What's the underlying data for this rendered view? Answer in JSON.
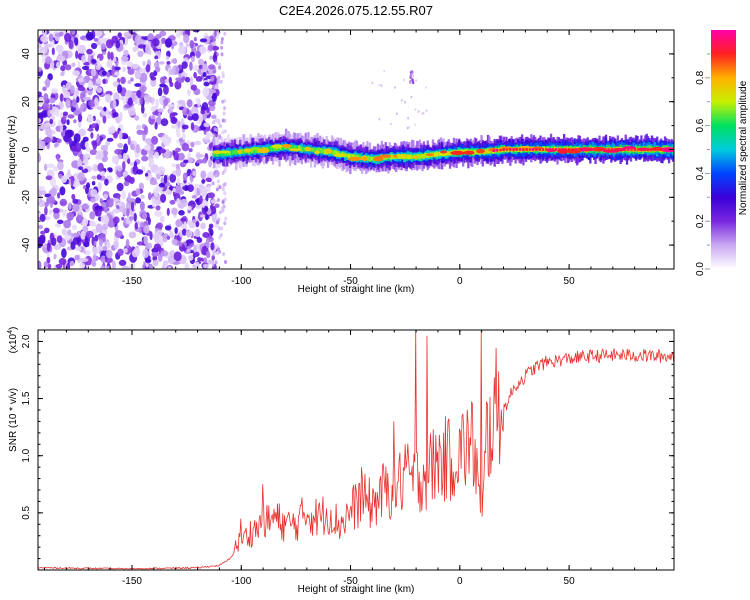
{
  "figure": {
    "title": "C2E4.2026.075.12.55.R07"
  },
  "chart_data": [
    {
      "type": "heatmap",
      "title": "C2E4.2026.075.12.55.R07",
      "xlabel": "Height of straight line (km)",
      "ylabel": "Frequency (Hz)",
      "xlim": [
        -193,
        98
      ],
      "ylim": [
        -50,
        50
      ],
      "x_ticks": [
        -150,
        -100,
        -50,
        0,
        50
      ],
      "x_tick_labels": [
        "-150",
        "-100",
        "-50",
        "0",
        "50"
      ],
      "y_ticks": [
        -40,
        -20,
        0,
        20,
        40
      ],
      "y_tick_labels": [
        "-40",
        "-20",
        "0",
        "20",
        "40"
      ],
      "colorbar": {
        "label": "Normalized spectral amplitude",
        "range": [
          0.0,
          1.0
        ],
        "ticks": [
          0.0,
          0.2,
          0.4,
          0.6,
          0.8
        ],
        "tick_labels": [
          "0.0",
          "0.2",
          "0.4",
          "0.6",
          "0.8"
        ],
        "colormap": [
          "#ffffff",
          "#c9a8f2",
          "#7a28e0",
          "#3a00d8",
          "#0044ff",
          "#00ccdd",
          "#00e060",
          "#c8f000",
          "#ffb000",
          "#ff2020",
          "#ff00aa"
        ]
      },
      "noise_region": {
        "x_range": [
          -193,
          -113
        ],
        "freq_range": [
          -50,
          50
        ]
      },
      "signal_band": {
        "x_range": [
          -113,
          98
        ],
        "center_freq_points": [
          [
            -113,
            -2
          ],
          [
            -100,
            -1
          ],
          [
            -90,
            0
          ],
          [
            -80,
            1
          ],
          [
            -70,
            0
          ],
          [
            -60,
            -1
          ],
          [
            -50,
            -3
          ],
          [
            -40,
            -4
          ],
          [
            -30,
            -3
          ],
          [
            -20,
            -3
          ],
          [
            -10,
            -2
          ],
          [
            0,
            -1
          ],
          [
            10,
            -1
          ],
          [
            20,
            0
          ],
          [
            40,
            0
          ],
          [
            60,
            0
          ],
          [
            80,
            0
          ],
          [
            98,
            0
          ]
        ],
        "band_halfwidth_hz": 6
      },
      "spurious_feature": {
        "x": -22,
        "freq": 30
      }
    },
    {
      "type": "line",
      "xlabel": "Height of straight line (km)",
      "ylabel": "SNR (10 * v/v)",
      "y_scale_label": "(x10",
      "y_scale_exponent": "4",
      "y_scale_close": ")",
      "xlim": [
        -193,
        98
      ],
      "ylim": [
        0,
        2.1
      ],
      "x_ticks": [
        -150,
        -100,
        -50,
        0,
        50
      ],
      "x_tick_labels": [
        "-150",
        "-100",
        "-50",
        "0",
        "50"
      ],
      "y_ticks": [
        0.5,
        1.0,
        1.5,
        2.0
      ],
      "y_tick_labels": [
        "0.5",
        "1.0",
        "1.5",
        "2.0"
      ],
      "series": [
        {
          "name": "SNR",
          "color": "#e8322e",
          "x": [
            -193,
            -150,
            -120,
            -110,
            -105,
            -102,
            -100,
            -95,
            -90,
            -85,
            -80,
            -75,
            -70,
            -65,
            -60,
            -55,
            -50,
            -45,
            -40,
            -35,
            -30,
            -25,
            -20,
            -15,
            -10,
            -5,
            0,
            5,
            8,
            10,
            12,
            15,
            20,
            25,
            30,
            35,
            40,
            50,
            60,
            70,
            80,
            90,
            98
          ],
          "y": [
            0.02,
            0.01,
            0.02,
            0.04,
            0.1,
            0.2,
            0.22,
            0.3,
            0.35,
            0.4,
            0.35,
            0.35,
            0.45,
            0.4,
            0.45,
            0.35,
            0.45,
            0.55,
            0.5,
            0.6,
            0.65,
            0.7,
            0.7,
            0.75,
            0.85,
            0.85,
            0.9,
            1.0,
            0.8,
            0.25,
            1.0,
            1.15,
            1.4,
            1.6,
            1.7,
            1.78,
            1.82,
            1.85,
            1.87,
            1.88,
            1.88,
            1.87,
            1.87
          ],
          "spikes": [
            [
              -20,
              2.1
            ],
            [
              -15,
              2.05
            ],
            [
              10,
              2.1
            ],
            [
              -25,
              1.1
            ],
            [
              -45,
              0.9
            ],
            [
              -30,
              1.3
            ],
            [
              -100,
              0.45
            ],
            [
              -90,
              0.75
            ]
          ]
        }
      ]
    }
  ]
}
